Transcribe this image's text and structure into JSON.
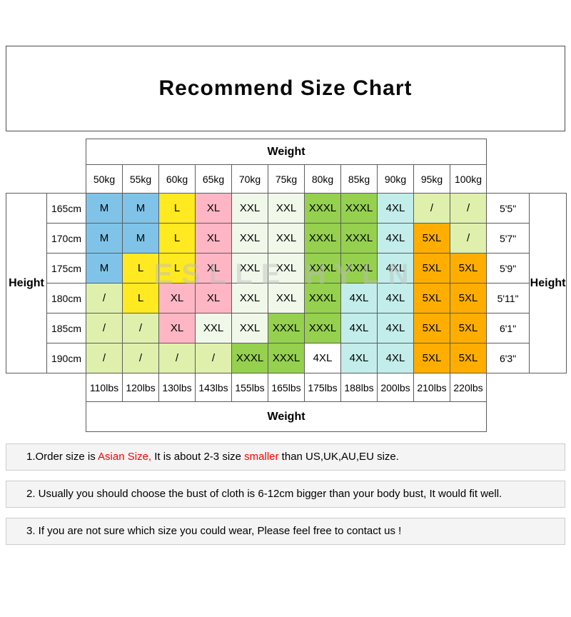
{
  "title": "Recommend Size Chart",
  "watermark": "ESLLE HYLN",
  "chart_data": {
    "type": "table",
    "title": "Recommend Size Chart",
    "weight_label_top": "Weight",
    "weight_label_bottom": "Weight",
    "height_label_left": "Height",
    "height_label_right": "Height",
    "kg_headers": [
      "50kg",
      "55kg",
      "60kg",
      "65kg",
      "70kg",
      "75kg",
      "80kg",
      "85kg",
      "90kg",
      "95kg",
      "100kg"
    ],
    "lbs_footers": [
      "110lbs",
      "120lbs",
      "130lbs",
      "143lbs",
      "155lbs",
      "165lbs",
      "175lbs",
      "188lbs",
      "200lbs",
      "210lbs",
      "220lbs"
    ],
    "rows": [
      {
        "height_cm": "165cm",
        "height_ft": "5'5\"",
        "cells": [
          {
            "size": "M",
            "color": "blue"
          },
          {
            "size": "M",
            "color": "blue"
          },
          {
            "size": "L",
            "color": "yellow"
          },
          {
            "size": "XL",
            "color": "pink"
          },
          {
            "size": "XXL",
            "color": "pale"
          },
          {
            "size": "XXL",
            "color": "pale"
          },
          {
            "size": "XXXL",
            "color": "green"
          },
          {
            "size": "XXXL",
            "color": "green"
          },
          {
            "size": "4XL",
            "color": "cyan"
          },
          {
            "size": "/",
            "color": "slash"
          },
          {
            "size": "/",
            "color": "slash"
          }
        ]
      },
      {
        "height_cm": "170cm",
        "height_ft": "5'7\"",
        "cells": [
          {
            "size": "M",
            "color": "blue"
          },
          {
            "size": "M",
            "color": "blue"
          },
          {
            "size": "L",
            "color": "yellow"
          },
          {
            "size": "XL",
            "color": "pink"
          },
          {
            "size": "XXL",
            "color": "pale"
          },
          {
            "size": "XXL",
            "color": "pale"
          },
          {
            "size": "XXXL",
            "color": "green"
          },
          {
            "size": "XXXL",
            "color": "green"
          },
          {
            "size": "4XL",
            "color": "cyan"
          },
          {
            "size": "5XL",
            "color": "orange"
          },
          {
            "size": "/",
            "color": "slash"
          }
        ]
      },
      {
        "height_cm": "175cm",
        "height_ft": "5'9\"",
        "cells": [
          {
            "size": "M",
            "color": "blue"
          },
          {
            "size": "L",
            "color": "yellow"
          },
          {
            "size": "L",
            "color": "yellow"
          },
          {
            "size": "XL",
            "color": "pink"
          },
          {
            "size": "XXL",
            "color": "pale"
          },
          {
            "size": "XXL",
            "color": "pale"
          },
          {
            "size": "XXXL",
            "color": "green"
          },
          {
            "size": "XXXL",
            "color": "green"
          },
          {
            "size": "4XL",
            "color": "cyan"
          },
          {
            "size": "5XL",
            "color": "orange"
          },
          {
            "size": "5XL",
            "color": "orange"
          }
        ]
      },
      {
        "height_cm": "180cm",
        "height_ft": "5'11\"",
        "cells": [
          {
            "size": "/",
            "color": "slash"
          },
          {
            "size": "L",
            "color": "yellow"
          },
          {
            "size": "XL",
            "color": "pink"
          },
          {
            "size": "XL",
            "color": "pink"
          },
          {
            "size": "XXL",
            "color": "pale"
          },
          {
            "size": "XXL",
            "color": "pale"
          },
          {
            "size": "XXXL",
            "color": "green"
          },
          {
            "size": "4XL",
            "color": "cyan"
          },
          {
            "size": "4XL",
            "color": "cyan"
          },
          {
            "size": "5XL",
            "color": "orange"
          },
          {
            "size": "5XL",
            "color": "orange"
          }
        ]
      },
      {
        "height_cm": "185cm",
        "height_ft": "6'1\"",
        "cells": [
          {
            "size": "/",
            "color": "slash"
          },
          {
            "size": "/",
            "color": "slash"
          },
          {
            "size": "XL",
            "color": "pink"
          },
          {
            "size": "XXL",
            "color": "pale"
          },
          {
            "size": "XXL",
            "color": "pale"
          },
          {
            "size": "XXXL",
            "color": "green"
          },
          {
            "size": "XXXL",
            "color": "green"
          },
          {
            "size": "4XL",
            "color": "cyan"
          },
          {
            "size": "4XL",
            "color": "cyan"
          },
          {
            "size": "5XL",
            "color": "orange"
          },
          {
            "size": "5XL",
            "color": "orange"
          }
        ]
      },
      {
        "height_cm": "190cm",
        "height_ft": "6'3\"",
        "cells": [
          {
            "size": "/",
            "color": "slash"
          },
          {
            "size": "/",
            "color": "slash"
          },
          {
            "size": "/",
            "color": "slash"
          },
          {
            "size": "/",
            "color": "slash"
          },
          {
            "size": "XXXL",
            "color": "green"
          },
          {
            "size": "XXXL",
            "color": "green"
          },
          {
            "size": "4XL",
            "color": "white"
          },
          {
            "size": "4XL",
            "color": "cyan"
          },
          {
            "size": "4XL",
            "color": "cyan"
          },
          {
            "size": "5XL",
            "color": "orange"
          },
          {
            "size": "5XL",
            "color": "orange"
          }
        ]
      }
    ]
  },
  "colors": {
    "blue": "#7FC4E8",
    "yellow": "#FFE920",
    "pink": "#FFB6C4",
    "pale": "#F0F8EA",
    "green": "#95D14E",
    "cyan": "#C2EDEA",
    "orange": "#FFAE00",
    "slash": "#DFF0AD",
    "white": "#FFFFFF"
  },
  "notes": {
    "n1_part1": "1.Order size is ",
    "n1_part2": "Asian Size,",
    "n1_part3": " It is about 2-3 size ",
    "n1_part4": "smaller",
    "n1_part5": " than US,UK,AU,EU size.",
    "n2": "2. Usually you should choose the bust of cloth is 6-12cm bigger than your body bust, It would fit well.",
    "n3": "3. If you are not sure which size you could wear, Please feel free to contact us !"
  }
}
